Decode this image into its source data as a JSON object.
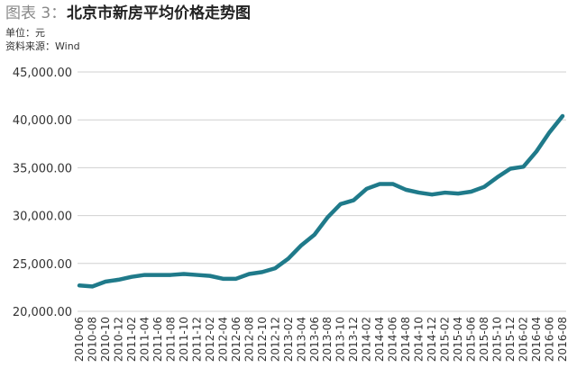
{
  "chart_data": {
    "type": "line",
    "figure_label": "图表 3：",
    "title": "北京市新房平均价格走势图",
    "subtitle": [
      "单位：元",
      "资料来源：Wind"
    ],
    "categories": [
      "2010-06",
      "2010-08",
      "2010-10",
      "2010-12",
      "2011-02",
      "2011-04",
      "2011-06",
      "2011-08",
      "2011-10",
      "2011-12",
      "2012-02",
      "2012-04",
      "2012-06",
      "2012-08",
      "2012-10",
      "2012-12",
      "2013-02",
      "2013-04",
      "2013-06",
      "2013-08",
      "2013-10",
      "2013-12",
      "2014-02",
      "2014-04",
      "2014-06",
      "2014-08",
      "2014-10",
      "2014-12",
      "2015-02",
      "2015-04",
      "2015-06",
      "2015-08",
      "2015-10",
      "2015-12",
      "2016-02",
      "2016-04",
      "2016-06",
      "2016-08"
    ],
    "values": [
      22700,
      22600,
      23100,
      23300,
      23600,
      23800,
      23800,
      23800,
      23900,
      23800,
      23700,
      23400,
      23400,
      23900,
      24100,
      24500,
      25500,
      26900,
      28000,
      29800,
      31200,
      31600,
      32800,
      33300,
      33300,
      32700,
      32400,
      32200,
      32400,
      32300,
      32500,
      33000,
      34000,
      34900,
      35100,
      36700,
      38700,
      40400
    ],
    "color": "#1f7a8a",
    "ylim": [
      20000,
      45000
    ],
    "yticks": [
      {
        "value": 20000,
        "label": "20,000.00"
      },
      {
        "value": 25000,
        "label": "25,000.00"
      },
      {
        "value": 30000,
        "label": "30,000.00"
      },
      {
        "value": 35000,
        "label": "35,000.00"
      },
      {
        "value": 40000,
        "label": "40,000.00"
      },
      {
        "value": 45000,
        "label": "45,000.00"
      }
    ],
    "grid": true
  }
}
